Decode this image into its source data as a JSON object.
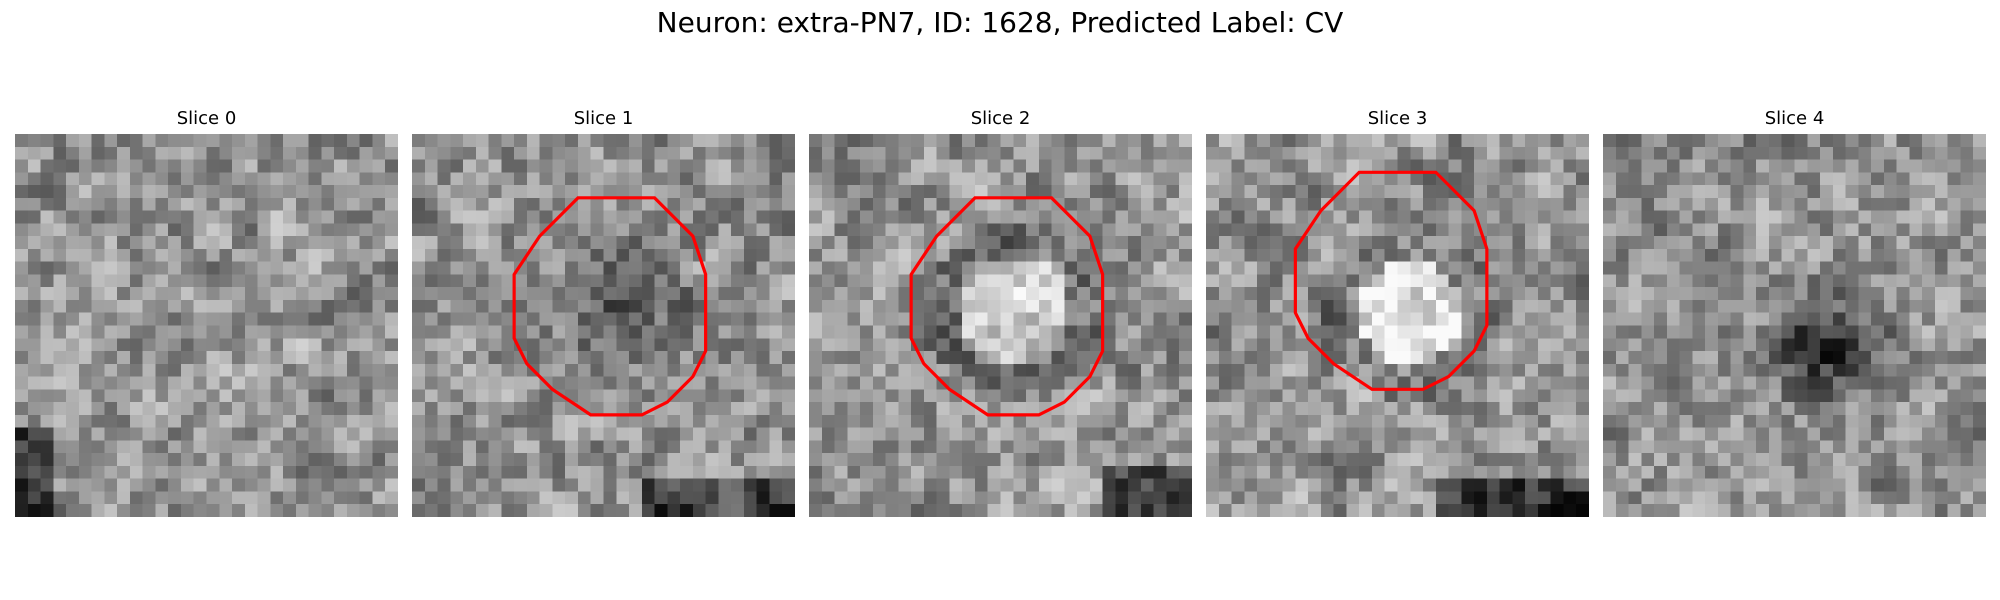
{
  "figure": {
    "title": "Neuron: extra-PN7, ID: 1628, Predicted Label: CV"
  },
  "panels": [
    {
      "title": "Slice 0",
      "seed": 11,
      "blob": "none",
      "contour": false
    },
    {
      "title": "Slice 1",
      "seed": 23,
      "blob": "dark",
      "contour": true
    },
    {
      "title": "Slice 2",
      "seed": 37,
      "blob": "ring",
      "contour": true
    },
    {
      "title": "Slice 3",
      "seed": 41,
      "blob": "bright",
      "contour": true
    },
    {
      "title": "Slice 4",
      "seed": 53,
      "blob": "darkspot",
      "contour": false
    }
  ],
  "colors": {
    "contour": "#ff0000",
    "colormap": "gray"
  }
}
